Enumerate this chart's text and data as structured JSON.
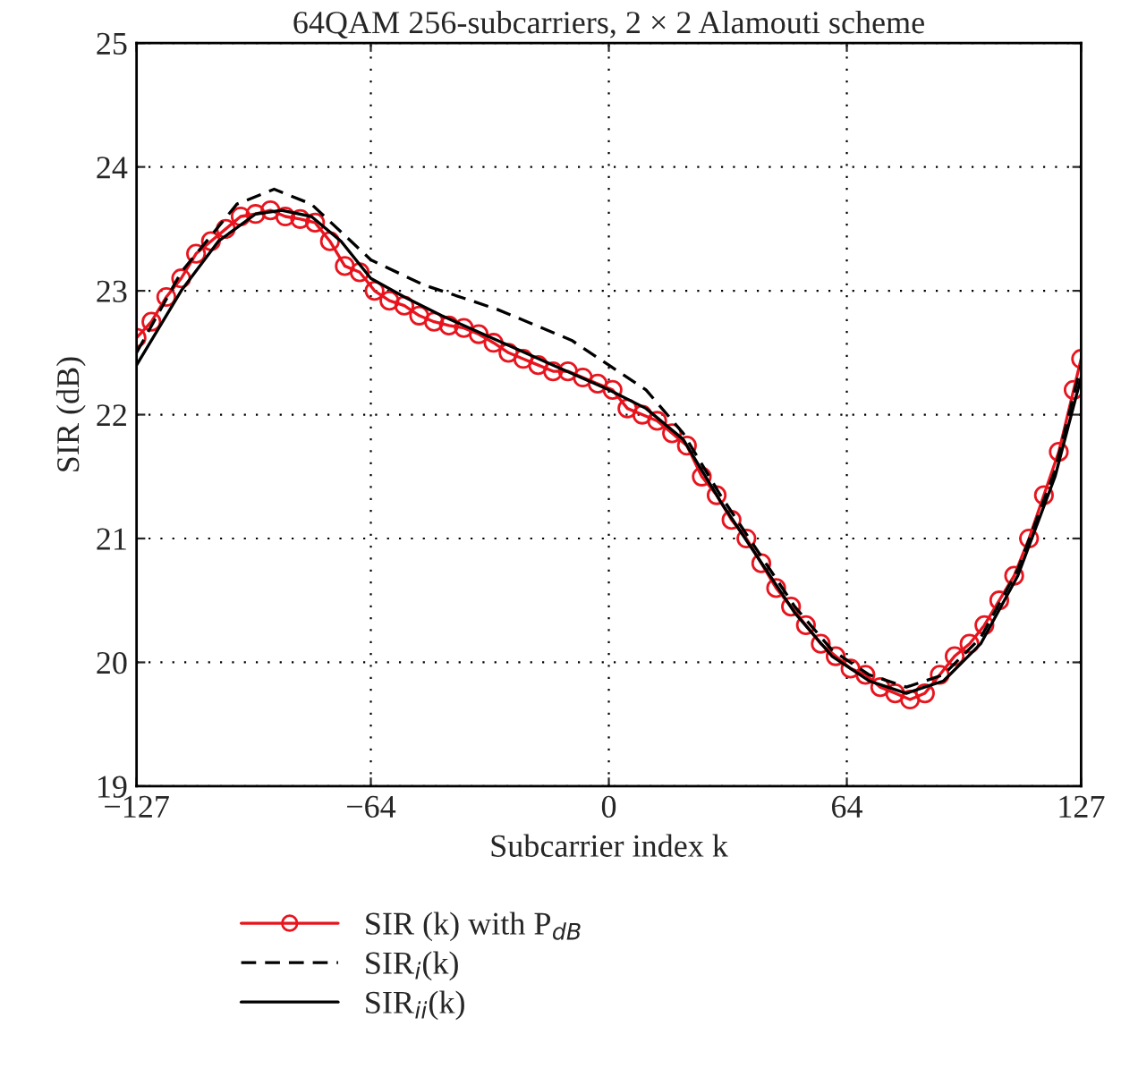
{
  "chart_data": {
    "type": "line",
    "title": "64QAM 256-subcarriers, 2 × 2 Alamouti scheme",
    "xlabel": "Subcarrier index k",
    "ylabel": "SIR (dB)",
    "xlim": [
      -127,
      127
    ],
    "xticks": [
      {
        "value": -127,
        "label": "−127"
      },
      {
        "value": -64,
        "label": "−64"
      },
      0,
      64,
      127
    ],
    "ylim": [
      19,
      25
    ],
    "yticks": [
      19,
      20,
      21,
      22,
      23,
      24,
      25
    ],
    "grid": true,
    "legend": "bottom left",
    "series": [
      {
        "name": "SIR (k) with P$_{dB}$",
        "color": "#e8141e",
        "marker": "circle",
        "line_style": "solid",
        "x": [
          -127,
          -123,
          -119,
          -115,
          -111,
          -107,
          -103,
          -99,
          -95,
          -91,
          -87,
          -83,
          -79,
          -75,
          -71,
          -67,
          -63,
          -59,
          -55,
          -51,
          -47,
          -43,
          -39,
          -35,
          -31,
          -27,
          -23,
          -19,
          -15,
          -11,
          -7,
          -3,
          1,
          5,
          9,
          13,
          17,
          21,
          25,
          29,
          33,
          37,
          41,
          45,
          49,
          53,
          57,
          61,
          65,
          69,
          73,
          77,
          81,
          85,
          89,
          93,
          97,
          101,
          105,
          109,
          113,
          117,
          121,
          125,
          127
        ],
        "values": [
          22.62,
          22.75,
          22.95,
          23.1,
          23.3,
          23.4,
          23.5,
          23.6,
          23.62,
          23.65,
          23.6,
          23.58,
          23.55,
          23.4,
          23.2,
          23.15,
          23.0,
          22.92,
          22.88,
          22.8,
          22.75,
          22.72,
          22.7,
          22.65,
          22.58,
          22.5,
          22.45,
          22.4,
          22.35,
          22.35,
          22.3,
          22.25,
          22.2,
          22.05,
          22.0,
          21.95,
          21.85,
          21.75,
          21.5,
          21.35,
          21.15,
          21.0,
          20.8,
          20.6,
          20.45,
          20.3,
          20.15,
          20.05,
          19.95,
          19.9,
          19.8,
          19.75,
          19.7,
          19.75,
          19.9,
          20.05,
          20.15,
          20.3,
          20.5,
          20.7,
          21.0,
          21.35,
          21.7,
          22.2,
          22.45
        ]
      },
      {
        "name": "SIR$_{i}$(k)",
        "color": "#000000",
        "marker": "none",
        "line_style": "dashed",
        "x": [
          -127,
          -115,
          -100,
          -90,
          -80,
          -64,
          -50,
          -30,
          -10,
          0,
          10,
          20,
          30,
          40,
          50,
          60,
          70,
          80,
          90,
          100,
          110,
          120,
          127
        ],
        "values": [
          22.5,
          23.15,
          23.7,
          23.82,
          23.7,
          23.25,
          23.05,
          22.85,
          22.6,
          22.4,
          22.2,
          21.85,
          21.35,
          20.9,
          20.45,
          20.1,
          19.9,
          19.8,
          19.9,
          20.2,
          20.75,
          21.55,
          22.4
        ]
      },
      {
        "name": "SIR$_{ii}$(k)",
        "color": "#000000",
        "marker": "none",
        "line_style": "solid",
        "x": [
          -127,
          -115,
          -105,
          -95,
          -88,
          -80,
          -72,
          -64,
          -55,
          -45,
          -30,
          -15,
          0,
          10,
          20,
          30,
          40,
          50,
          60,
          70,
          80,
          90,
          100,
          110,
          120,
          127
        ],
        "values": [
          22.4,
          23.0,
          23.4,
          23.62,
          23.65,
          23.6,
          23.4,
          23.1,
          22.95,
          22.8,
          22.6,
          22.4,
          22.2,
          22.05,
          21.8,
          21.3,
          20.85,
          20.4,
          20.05,
          19.85,
          19.75,
          19.85,
          20.15,
          20.7,
          21.5,
          22.3
        ]
      }
    ]
  }
}
